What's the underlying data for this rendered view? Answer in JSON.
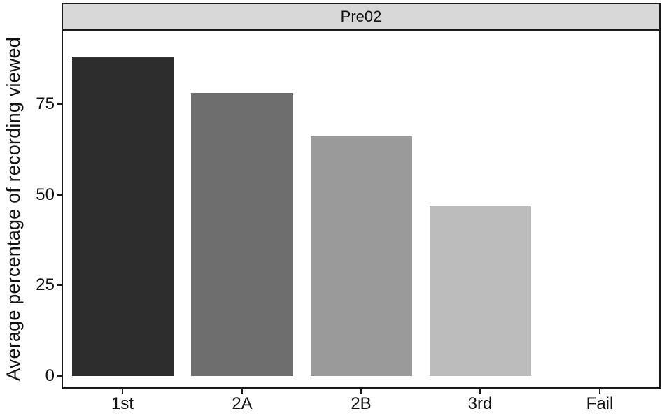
{
  "chart_data": {
    "type": "bar",
    "title": "Pre02",
    "categories": [
      "1st",
      "2A",
      "2B",
      "3rd",
      "Fail"
    ],
    "values": [
      88,
      78,
      66,
      47,
      0
    ],
    "xlabel": "",
    "ylabel": "Average percentage of recording viewed",
    "yticks": [
      0,
      25,
      50,
      75
    ],
    "ylim": [
      0,
      95
    ],
    "bar_colors": [
      "#2d2d2d",
      "#6e6e6e",
      "#9a9a9a",
      "#bcbcbc",
      "#d0d0d0"
    ],
    "strip_bg": "#d8d8d8",
    "panel_border": "#1a1a1a",
    "legend": "none",
    "grid": "off"
  }
}
